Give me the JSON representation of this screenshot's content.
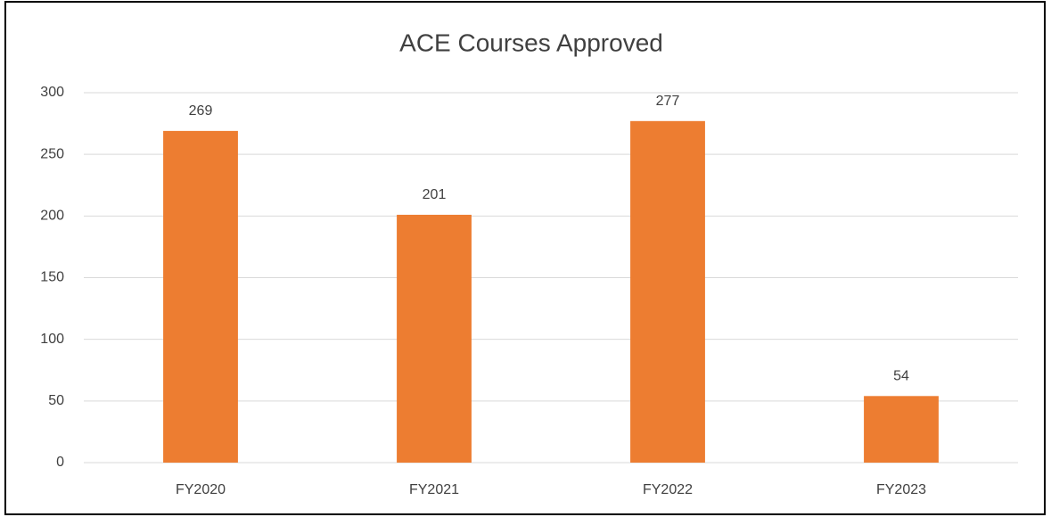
{
  "chart_data": {
    "type": "bar",
    "title": "ACE Courses Approved",
    "categories": [
      "FY2020",
      "FY2021",
      "FY2022",
      "FY2023"
    ],
    "values": [
      269,
      201,
      277,
      54
    ],
    "color": "#ed7d31",
    "ylim": [
      0,
      300
    ],
    "yticks": [
      0,
      50,
      100,
      150,
      200,
      250,
      300
    ],
    "grid": true,
    "data_labels": true
  }
}
